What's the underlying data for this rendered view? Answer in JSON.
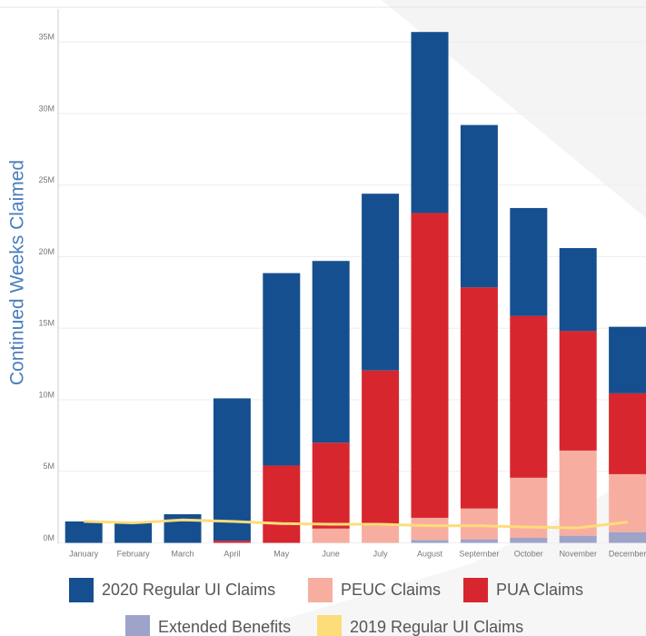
{
  "chart_data": {
    "type": "bar",
    "stacked": true,
    "y_axis_label": "Continued Weeks Claimed",
    "categories": [
      "January",
      "February",
      "March",
      "April",
      "May",
      "June",
      "July",
      "August",
      "September",
      "October",
      "November",
      "December"
    ],
    "series": [
      {
        "name": "2020 Regular UI Claims",
        "color": "#164f8f",
        "values": [
          1.5,
          1.4,
          2.0,
          9.95,
          13.45,
          12.7,
          12.35,
          12.65,
          11.35,
          7.55,
          5.8,
          4.65
        ]
      },
      {
        "name": "PEUC Claims",
        "color": "#f7aea0",
        "values": [
          0,
          0,
          0,
          0,
          0,
          1.0,
          1.2,
          1.55,
          2.15,
          4.2,
          5.95,
          4.05
        ]
      },
      {
        "name": "PUA Claims",
        "color": "#d8262e",
        "values": [
          0,
          0,
          0,
          0.15,
          5.4,
          6.0,
          10.85,
          21.3,
          15.45,
          11.3,
          8.35,
          5.65
        ]
      },
      {
        "name": "Extended Benefits",
        "color": "#9ea3c9",
        "values": [
          0,
          0,
          0,
          0,
          0,
          0,
          0,
          0.2,
          0.25,
          0.35,
          0.5,
          0.75
        ]
      },
      {
        "name": "2019 Regular UI Claims",
        "color": "#fddc7a",
        "type": "line",
        "values": [
          1.5,
          1.4,
          1.6,
          1.5,
          1.35,
          1.3,
          1.3,
          1.2,
          1.2,
          1.1,
          1.05,
          1.45
        ]
      }
    ],
    "ylim": [
      0,
      37.3
    ],
    "yticks": [
      {
        "value": 0,
        "label": "0M"
      },
      {
        "value": 5,
        "label": "5M"
      },
      {
        "value": 10,
        "label": "10M"
      },
      {
        "value": 15,
        "label": "15M"
      },
      {
        "value": 20,
        "label": "20M"
      },
      {
        "value": 25,
        "label": "25M"
      },
      {
        "value": 30,
        "label": "30M"
      },
      {
        "value": 35,
        "label": "35M"
      }
    ],
    "grid": true
  }
}
